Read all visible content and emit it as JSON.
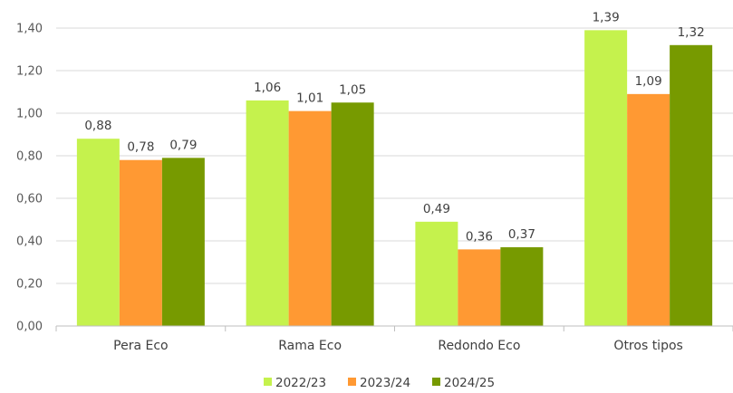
{
  "chart_data": {
    "type": "bar",
    "categories": [
      "Pera Eco",
      "Rama Eco",
      "Redondo Eco",
      "Otros tipos"
    ],
    "series": [
      {
        "name": "2022/23",
        "values": [
          0.88,
          1.06,
          0.49,
          1.39
        ],
        "labels": [
          "0,88",
          "1,06",
          "0,49",
          "1,39"
        ],
        "color": "#c5f24d"
      },
      {
        "name": "2023/24",
        "values": [
          0.78,
          1.01,
          0.36,
          1.09
        ],
        "labels": [
          "0,78",
          "1,01",
          "0,36",
          "1,09"
        ],
        "color": "#ff9933"
      },
      {
        "name": "2024/25",
        "values": [
          0.79,
          1.05,
          0.37,
          1.32
        ],
        "labels": [
          "0,79",
          "1,05",
          "0,37",
          "1,32"
        ],
        "color": "#779a00"
      }
    ],
    "yticks": [
      0,
      0.2,
      0.4,
      0.6,
      0.8,
      1.0,
      1.2,
      1.4
    ],
    "ytick_labels": [
      "0,00",
      "0,20",
      "0,40",
      "0,60",
      "0,80",
      "1,00",
      "1,20",
      "1,40"
    ],
    "ylim": [
      0,
      1.4
    ],
    "grid": true,
    "legend_position": "bottom-center",
    "title": "",
    "xlabel": "",
    "ylabel": ""
  }
}
